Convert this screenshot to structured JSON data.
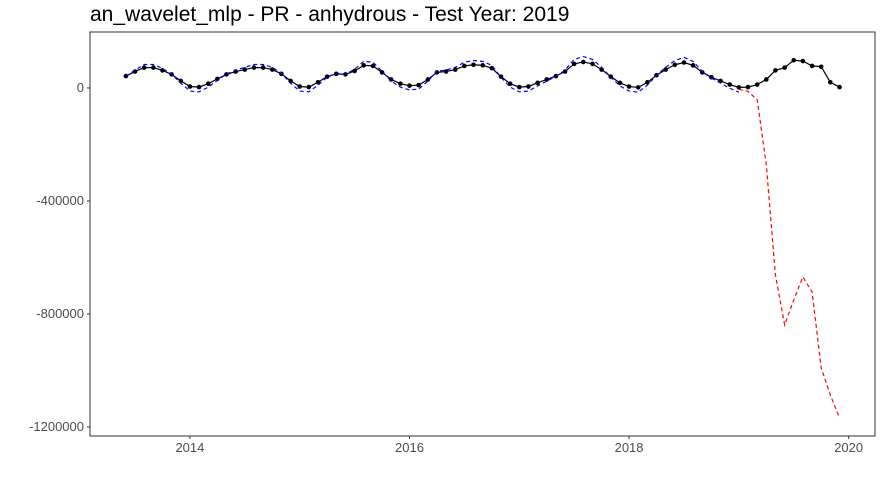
{
  "chart_data": {
    "type": "line",
    "title": "an_wavelet_mlp - PR - anhydrous - Test Year: 2019",
    "x": [
      2013.417,
      2013.5,
      2013.583,
      2013.667,
      2013.75,
      2013.833,
      2013.917,
      2014,
      2014.083,
      2014.167,
      2014.25,
      2014.333,
      2014.417,
      2014.5,
      2014.583,
      2014.667,
      2014.75,
      2014.833,
      2014.917,
      2015,
      2015.083,
      2015.167,
      2015.25,
      2015.333,
      2015.417,
      2015.5,
      2015.583,
      2015.667,
      2015.75,
      2015.833,
      2015.917,
      2016,
      2016.083,
      2016.167,
      2016.25,
      2016.333,
      2016.417,
      2016.5,
      2016.583,
      2016.667,
      2016.75,
      2016.833,
      2016.917,
      2017,
      2017.083,
      2017.167,
      2017.25,
      2017.333,
      2017.417,
      2017.5,
      2017.583,
      2017.667,
      2017.75,
      2017.833,
      2017.917,
      2018,
      2018.083,
      2018.167,
      2018.25,
      2018.333,
      2018.417,
      2018.5,
      2018.583,
      2018.667,
      2018.75,
      2018.833,
      2018.917,
      2019,
      2019.083,
      2019.167,
      2019.25,
      2019.333,
      2019.417,
      2019.5,
      2019.583,
      2019.667,
      2019.75,
      2019.833,
      2019.917
    ],
    "series": [
      {
        "color": "#000000",
        "dash": false,
        "markers": true,
        "values": [
          42000,
          58000,
          72000,
          72000,
          62000,
          48000,
          25000,
          5000,
          3000,
          15000,
          32000,
          48000,
          58000,
          65000,
          72000,
          72000,
          65000,
          50000,
          25000,
          5000,
          3000,
          20000,
          40000,
          50000,
          48000,
          60000,
          80000,
          78000,
          55000,
          30000,
          15000,
          8000,
          10000,
          30000,
          55000,
          58000,
          65000,
          78000,
          82000,
          80000,
          70000,
          40000,
          15000,
          3000,
          5000,
          18000,
          30000,
          42000,
          58000,
          85000,
          92000,
          85000,
          65000,
          40000,
          18000,
          5000,
          2000,
          20000,
          45000,
          65000,
          82000,
          90000,
          80000,
          55000,
          38000,
          25000,
          12000,
          2000,
          3000,
          12000,
          30000,
          62000,
          72000,
          98000,
          95000,
          78000,
          75000,
          20000,
          3000
        ]
      },
      {
        "color": "#0000ff",
        "dash": true,
        "markers": false,
        "values": [
          41000,
          63000,
          83000,
          83000,
          69000,
          49000,
          17000,
          -11000,
          -14000,
          3000,
          27000,
          49000,
          63000,
          73000,
          83000,
          83000,
          73000,
          52000,
          17000,
          -11000,
          -14000,
          10000,
          38000,
          52000,
          49000,
          66000,
          94000,
          91000,
          59000,
          24000,
          3000,
          -7000,
          -4000,
          24000,
          59000,
          63000,
          73000,
          91000,
          97000,
          94000,
          80000,
          38000,
          3000,
          -14000,
          -11000,
          7000,
          24000,
          41000,
          63000,
          101000,
          111000,
          101000,
          73000,
          38000,
          7000,
          -11000,
          -15000,
          10000,
          45000,
          73000,
          97000,
          108000,
          94000,
          59000,
          35000,
          17000,
          -1000,
          -15000,
          null,
          null,
          null,
          null,
          null,
          null,
          null,
          null,
          null,
          null,
          null
        ]
      },
      {
        "color": "#ff0000",
        "dash": true,
        "markers": false,
        "values": [
          null,
          null,
          null,
          null,
          null,
          null,
          null,
          null,
          null,
          null,
          null,
          null,
          null,
          null,
          null,
          null,
          null,
          null,
          null,
          null,
          null,
          null,
          null,
          null,
          null,
          null,
          null,
          null,
          null,
          null,
          null,
          null,
          null,
          null,
          null,
          null,
          null,
          null,
          null,
          null,
          null,
          null,
          null,
          null,
          null,
          null,
          null,
          null,
          null,
          null,
          null,
          null,
          null,
          null,
          null,
          null,
          null,
          null,
          null,
          null,
          null,
          null,
          null,
          null,
          null,
          null,
          null,
          -5000,
          -12000,
          -42000,
          -272000,
          -662000,
          -839000,
          -750000,
          -669000,
          -722000,
          -991000,
          -1087000,
          -1168000
        ]
      }
    ],
    "xlim": [
      2013.09,
      2020.24
    ],
    "xticks": [
      2014,
      2016,
      2018,
      2020
    ],
    "ylim": [
      -1232000,
      198000
    ],
    "yticks": [
      -1200000,
      -800000,
      -400000,
      0
    ],
    "grid": false
  }
}
